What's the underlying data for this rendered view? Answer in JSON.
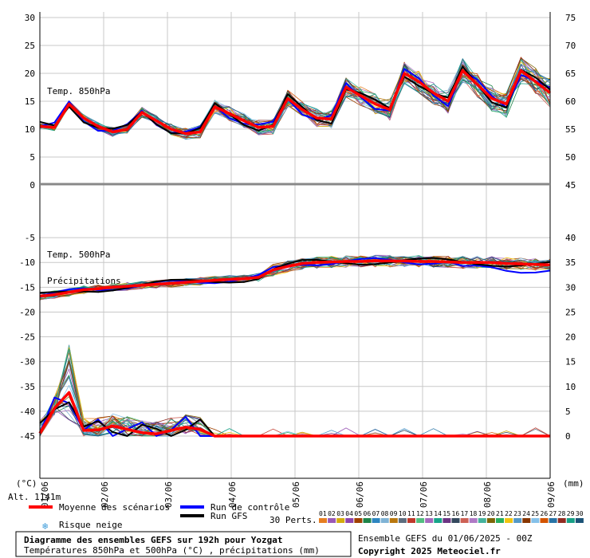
{
  "chart_data": {
    "type": "line",
    "x_ticks": [
      "02/06",
      "03/06",
      "04/06",
      "05/06",
      "06/06",
      "07/06",
      "08/06",
      "09/06"
    ],
    "x_start": "01/06",
    "x_step_hours": 6,
    "panels": {
      "t850": {
        "label": "Temp. 850hPa",
        "left_ticks": [
          "30",
          "25",
          "20",
          "15",
          "10",
          "5",
          "0"
        ],
        "left_range": [
          0,
          30
        ],
        "right_ticks": [
          "75",
          "70",
          "65",
          "60",
          "55",
          "50",
          "45"
        ],
        "mean": [
          10.5,
          10.3,
          14.5,
          12.0,
          10.5,
          9.5,
          10.0,
          13.0,
          11.5,
          10.0,
          9.2,
          9.5,
          14.0,
          12.8,
          11.5,
          10.3,
          10.5,
          15.5,
          13.5,
          12.0,
          11.8,
          17.5,
          16.0,
          14.5,
          13.5,
          20.0,
          18.5,
          16.5,
          15.0,
          20.5,
          18.0,
          15.5,
          14.5,
          20.5,
          18.5,
          16.5
        ]
      },
      "t500": {
        "label": "Temp. 500hPa",
        "left_ticks": [
          "-5",
          "-10",
          "-15",
          "-20",
          "-25",
          "-30",
          "-35",
          "-40",
          "-45"
        ],
        "left_range": [
          -45,
          0
        ],
        "right_ticks": [
          "40",
          "35",
          "30",
          "25",
          "20",
          "15",
          "10",
          "5",
          "0"
        ],
        "mean": [
          -16.8,
          -16.5,
          -16.0,
          -15.5,
          -15.3,
          -15.0,
          -14.8,
          -14.6,
          -14.4,
          -14.2,
          -14.0,
          -13.8,
          -13.6,
          -13.4,
          -13.3,
          -13.0,
          -11.5,
          -10.8,
          -10.2,
          -10.0,
          -9.9,
          -9.8,
          -9.8,
          -9.7,
          -9.7,
          -9.7,
          -9.8,
          -9.8,
          -9.9,
          -10.0,
          -10.0,
          -10.0,
          -10.2,
          -10.3,
          -10.4,
          -10.5
        ]
      },
      "precip": {
        "label": "Précipitations",
        "mean": [
          0.5,
          5.0,
          7.8,
          1.0,
          1.1,
          1.8,
          1.2,
          0.6,
          0.4,
          1.0,
          1.6,
          1.2,
          0,
          0,
          0,
          0,
          0,
          0,
          0,
          0,
          0,
          0,
          0,
          0,
          0,
          0,
          0,
          0,
          0,
          0,
          0,
          0,
          0,
          0,
          0,
          0
        ]
      }
    },
    "right_unit": "(mm)",
    "left_unit": "(°C)",
    "legend": {
      "mean": "Moyenne des scénarios",
      "control": "Run de contrôle",
      "gfs": "Run GFS",
      "snow": "Risque neige",
      "perts_label": "30 Perts.",
      "pert_ids": [
        "01",
        "02",
        "03",
        "04",
        "05",
        "06",
        "07",
        "08",
        "09",
        "10",
        "11",
        "12",
        "13",
        "14",
        "15",
        "16",
        "17",
        "18",
        "19",
        "20",
        "21",
        "22",
        "23",
        "24",
        "25",
        "26",
        "27",
        "28",
        "29",
        "30"
      ],
      "pert_colors": [
        "#e67e22",
        "#9b59b6",
        "#d4ac0d",
        "#8e44ad",
        "#a04000",
        "#1e8449",
        "#2e86c1",
        "#7fb3d5",
        "#b9770e",
        "#5d6d7e",
        "#c0392b",
        "#52be80",
        "#a569bd",
        "#17a589",
        "#6c3483",
        "#34495e",
        "#cd6155",
        "#af7ac5",
        "#45b39d",
        "#7d6608",
        "#27ae60",
        "#f1c40f",
        "#5499c7",
        "#873600",
        "#85c1e9",
        "#d35400",
        "#2874a6",
        "#922b21",
        "#16a085",
        "#1a5276"
      ]
    },
    "colors": {
      "mean": "#ff0000",
      "control": "#0000ff",
      "gfs": "#000000"
    }
  },
  "alt_label": "Alt. 1141m",
  "title": "Diagramme des ensembles GEFS sur 192h pour Yozgat",
  "subtitle": "Températures 850hPa et 500hPa (°C) , précipitations (mm)",
  "run_info": "Ensemble GEFS du 01/06/2025 - 00Z",
  "copyright": "Copyright 2025 Meteociel.fr"
}
